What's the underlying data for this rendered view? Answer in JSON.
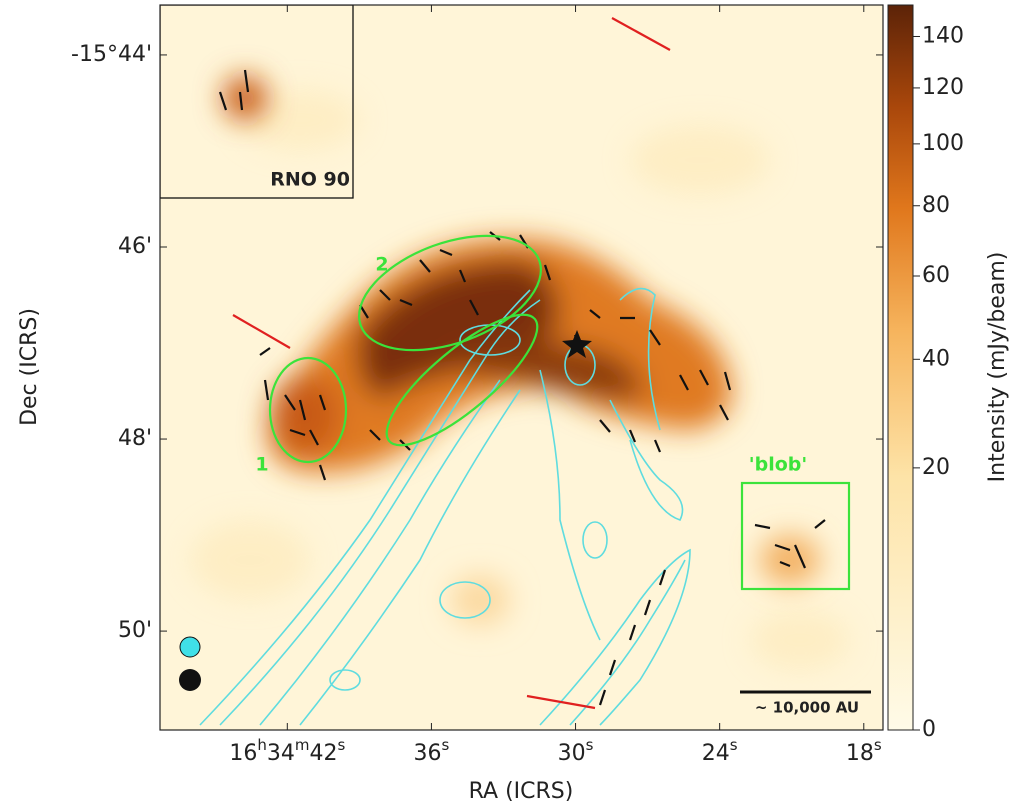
{
  "chart_data": {
    "type": "map",
    "xlabel": "RA (ICRS)",
    "ylabel": "Dec (ICRS)",
    "xlim": [
      47.3,
      17.2
    ],
    "xticks": [
      {
        "value": 42,
        "label": "16h34m42s"
      },
      {
        "value": 36,
        "label": "36s"
      },
      {
        "value": 30,
        "label": "30s"
      },
      {
        "value": 24,
        "label": "24s"
      },
      {
        "value": 18,
        "label": "18s"
      }
    ],
    "ylim": [
      -951.03,
      -943.48
    ],
    "yticks": [
      {
        "value": -944,
        "label": "-15°44'"
      },
      {
        "value": -946,
        "label": "46'"
      },
      {
        "value": -948,
        "label": "48'"
      },
      {
        "value": -950,
        "label": "50'"
      }
    ],
    "colorbar": {
      "label": "Intensity (mJy/beam)",
      "scale": "sqrt",
      "clim": [
        0,
        153
      ],
      "ticks": [
        0,
        20,
        40,
        60,
        80,
        100,
        120,
        140
      ]
    },
    "annotations": {
      "inset": "RNO 90",
      "region_1": "1",
      "region_2": "2",
      "blob": "'blob'",
      "scale_bar": "~ 10,000 AU"
    }
  }
}
